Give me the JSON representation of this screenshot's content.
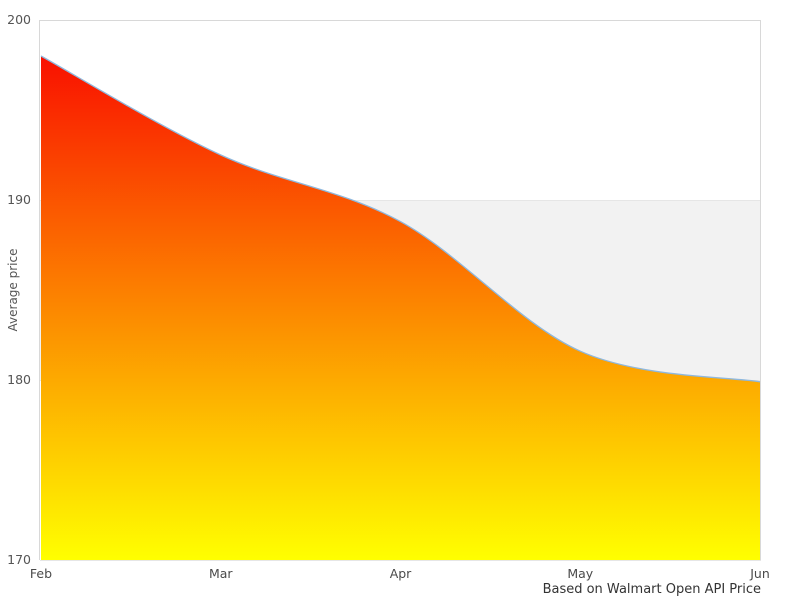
{
  "chart_data": {
    "type": "area",
    "x": [
      "Feb",
      "Mar",
      "Apr",
      "May",
      "Jun"
    ],
    "series": [
      {
        "name": "Average price",
        "values": [
          198,
          192.5,
          188.8,
          181.6,
          179.9
        ]
      }
    ],
    "title": "",
    "xlabel": "",
    "ylabel": "Average price",
    "caption": "Based on Walmart Open API Price",
    "ylim": [
      170,
      200
    ],
    "yticks": [
      170,
      180,
      190,
      200
    ],
    "band": {
      "from": 180,
      "to": 190,
      "color": "#f2f2f2"
    },
    "legend": "none",
    "grid": "horizontal",
    "smooth": true,
    "colors": {
      "line": "#8fb8dd",
      "fill_top": "#f91000",
      "fill_bottom": "#ffff00",
      "gridline": "#e6e6e6",
      "axis_line": "#d8d8d8",
      "tick_label": "#555555",
      "caption_text": "#333333",
      "background": "#ffffff"
    }
  }
}
